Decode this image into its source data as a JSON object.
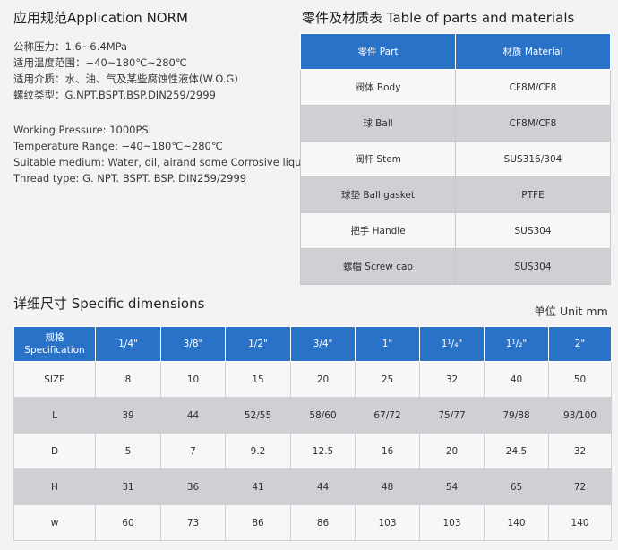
{
  "application": {
    "title": "应用规范Application NORM",
    "cn_lines": [
      "公称压力：1.6~6.4MPa",
      "适用温度范围：−40~180℃~280℃",
      "适用介质：水、油、气及某些腐蚀性液体(W.O.G)",
      "螺纹类型：G.NPT.BSPT.BSP.DIN259/2999"
    ],
    "en_lines": [
      "Working Pressure: 1000PSI",
      "Temperature Range: −40~180℃~280℃",
      "Suitable medium: Water, oil, airand some Corrosive liquid",
      "Thread type: G. NPT. BSPT. BSP. DIN259/2999"
    ]
  },
  "parts": {
    "title": "零件及材质表 Table of parts and materials",
    "header": [
      "零件 Part",
      "材质 Material"
    ],
    "rows": [
      [
        "阀体 Body",
        "CF8M/CF8"
      ],
      [
        "球 Ball",
        "CF8M/CF8"
      ],
      [
        "阀杆 Stem",
        "SUS316/304"
      ],
      [
        "球垫 Ball gasket",
        "PTFE"
      ],
      [
        "把手 Handle",
        "SUS304"
      ],
      [
        "螺帽 Screw cap",
        "SUS304"
      ]
    ]
  },
  "dimensions": {
    "title": "详细尺寸 Specific dimensions",
    "unit": "单位 Unit mm",
    "header_first": [
      "规格",
      "Specification"
    ],
    "sizes": [
      "1/4\"",
      "3/8\"",
      "1/2\"",
      "3/4\"",
      "1\"",
      "1¹/₄\"",
      "1¹/₂\"",
      "2\""
    ],
    "rows": [
      {
        "label": "SIZE",
        "values": [
          "8",
          "10",
          "15",
          "20",
          "25",
          "32",
          "40",
          "50"
        ]
      },
      {
        "label": "L",
        "values": [
          "39",
          "44",
          "52/55",
          "58/60",
          "67/72",
          "75/77",
          "79/88",
          "93/100"
        ]
      },
      {
        "label": "D",
        "values": [
          "5",
          "7",
          "9.2",
          "12.5",
          "16",
          "20",
          "24.5",
          "32"
        ]
      },
      {
        "label": "H",
        "values": [
          "31",
          "36",
          "41",
          "44",
          "48",
          "54",
          "65",
          "72"
        ]
      },
      {
        "label": "w",
        "values": [
          "60",
          "73",
          "86",
          "86",
          "103",
          "103",
          "140",
          "140"
        ]
      }
    ]
  }
}
